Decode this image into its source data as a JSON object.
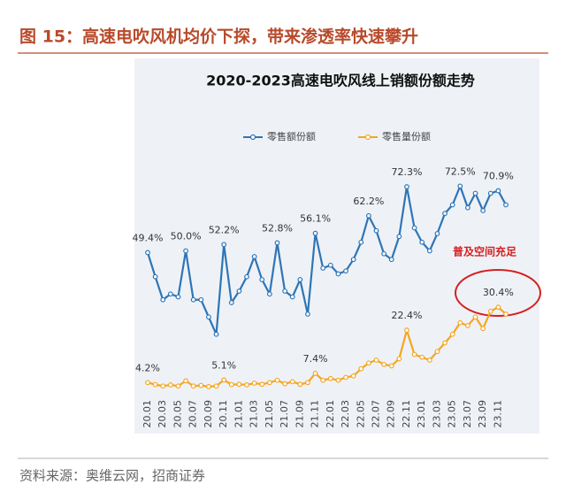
{
  "caption": "图 15：高速电吹风机均价下探，带来渗透率快速攀升",
  "source": "资料来源：奥维云网，招商证券",
  "chart_data": {
    "type": "line",
    "title": "2020-2023高速电吹风线上销额份额走势",
    "annotation": "普及空间充足",
    "categories": [
      "20.01",
      null,
      "20.03",
      null,
      "20.05",
      null,
      "20.07",
      null,
      "20.09",
      null,
      "20.11",
      null,
      "21.01",
      null,
      "21.03",
      null,
      "21.05",
      null,
      "21.07",
      null,
      "21.09",
      null,
      "21.11",
      null,
      "22.01",
      null,
      "22.03",
      null,
      "22.05",
      null,
      "22.07",
      null,
      "22.09",
      null,
      "22.11",
      null,
      "23.01",
      null,
      "23.03",
      null,
      "23.05",
      null,
      "23.07",
      null,
      "23.09",
      null,
      "23.11",
      null
    ],
    "series": [
      {
        "name": "零售额份额",
        "color": "#2e75b6",
        "values": [
          49.4,
          41,
          33,
          35,
          34,
          50.0,
          33,
          33,
          27,
          21,
          52.2,
          32,
          36,
          41,
          48,
          40,
          35,
          52.8,
          36,
          34,
          40,
          28,
          56.1,
          44,
          45,
          42,
          43,
          47,
          53,
          62.2,
          57,
          49,
          47,
          55,
          72.3,
          58,
          53,
          50,
          56,
          63,
          66,
          72.5,
          65,
          70,
          64,
          70,
          70.9,
          66
        ],
        "value_labels": [
          "49.4%",
          null,
          null,
          null,
          null,
          "50.0%",
          null,
          null,
          null,
          null,
          "52.2%",
          null,
          null,
          null,
          null,
          null,
          null,
          "52.8%",
          null,
          null,
          null,
          null,
          "56.1%",
          null,
          null,
          null,
          null,
          null,
          null,
          "62.2%",
          null,
          null,
          null,
          null,
          "72.3%",
          null,
          null,
          null,
          null,
          null,
          null,
          "72.5%",
          null,
          null,
          null,
          null,
          "70.9%",
          null
        ]
      },
      {
        "name": "零售量份额",
        "color": "#f5a623",
        "values": [
          4.2,
          3.5,
          3,
          3.4,
          3,
          4.8,
          3,
          3.2,
          2.8,
          3,
          5.1,
          3.5,
          3.6,
          3.4,
          4,
          3.6,
          4.2,
          5,
          3.8,
          4.5,
          3.6,
          4.2,
          7.4,
          5,
          5.6,
          5,
          6,
          6.5,
          9,
          11,
          12,
          10.5,
          10,
          12.5,
          22.4,
          14,
          13,
          12,
          15,
          18,
          21,
          25,
          24,
          27,
          23,
          29,
          30.4,
          28
        ],
        "value_labels": [
          "4.2%",
          null,
          null,
          null,
          null,
          null,
          null,
          null,
          null,
          null,
          "5.1%",
          null,
          null,
          null,
          null,
          null,
          null,
          null,
          null,
          null,
          null,
          null,
          "7.4%",
          null,
          null,
          null,
          null,
          null,
          null,
          null,
          null,
          null,
          null,
          null,
          "22.4%",
          null,
          null,
          null,
          null,
          null,
          null,
          null,
          null,
          null,
          null,
          null,
          "30.4%",
          null
        ]
      }
    ]
  }
}
